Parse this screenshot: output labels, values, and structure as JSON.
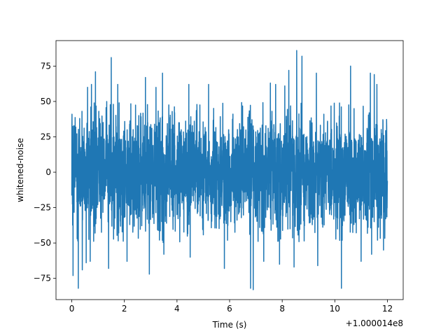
{
  "chart_data": {
    "type": "line",
    "title": "",
    "xlabel": "Time (s)",
    "ylabel": "whitened-noise",
    "x_offset_label": "+1.000014e8",
    "xlim": [
      -0.6,
      12.6
    ],
    "ylim": [
      -90,
      93
    ],
    "x_ticks": [
      0,
      2,
      4,
      6,
      8,
      10,
      12
    ],
    "x_tick_labels": [
      "0",
      "2",
      "4",
      "6",
      "8",
      "10",
      "12"
    ],
    "y_ticks": [
      -75,
      -50,
      -25,
      0,
      25,
      50,
      75
    ],
    "y_tick_labels": [
      "−75",
      "−50",
      "−25",
      "0",
      "25",
      "50",
      "75"
    ],
    "grid": false,
    "legend": "none",
    "series": [
      {
        "color": "#1f77b4",
        "x_range": [
          0,
          12
        ],
        "band": [
          -50,
          50
        ],
        "peaks": [
          {
            "x": 0.05,
            "y": 64
          },
          {
            "x": 0.25,
            "y": 61
          },
          {
            "x": 0.6,
            "y": 60
          },
          {
            "x": 0.75,
            "y": 62
          },
          {
            "x": 0.9,
            "y": 71
          },
          {
            "x": 1.5,
            "y": 81
          },
          {
            "x": 1.75,
            "y": 62
          },
          {
            "x": 2.8,
            "y": 67
          },
          {
            "x": 3.2,
            "y": 60
          },
          {
            "x": 3.45,
            "y": 70
          },
          {
            "x": 4.45,
            "y": 62
          },
          {
            "x": 5.2,
            "y": 62
          },
          {
            "x": 6.8,
            "y": 71
          },
          {
            "x": 7.3,
            "y": 60
          },
          {
            "x": 7.55,
            "y": 63
          },
          {
            "x": 7.75,
            "y": 62
          },
          {
            "x": 8.1,
            "y": 61
          },
          {
            "x": 8.25,
            "y": 72
          },
          {
            "x": 8.55,
            "y": 86
          },
          {
            "x": 8.75,
            "y": 82
          },
          {
            "x": 9.3,
            "y": 70
          },
          {
            "x": 10.25,
            "y": 66
          },
          {
            "x": 10.6,
            "y": 75
          },
          {
            "x": 11.35,
            "y": 70
          },
          {
            "x": 11.5,
            "y": 69
          },
          {
            "x": 11.6,
            "y": 62
          }
        ],
        "troughs": [
          {
            "x": 0.05,
            "y": -73
          },
          {
            "x": 0.25,
            "y": -82
          },
          {
            "x": 0.4,
            "y": -69
          },
          {
            "x": 0.55,
            "y": -64
          },
          {
            "x": 0.7,
            "y": -63
          },
          {
            "x": 1.4,
            "y": -68
          },
          {
            "x": 2.1,
            "y": -63
          },
          {
            "x": 2.95,
            "y": -72
          },
          {
            "x": 3.5,
            "y": -58
          },
          {
            "x": 4.5,
            "y": -60
          },
          {
            "x": 5.8,
            "y": -68
          },
          {
            "x": 6.8,
            "y": -82
          },
          {
            "x": 6.9,
            "y": -83
          },
          {
            "x": 7.3,
            "y": -63
          },
          {
            "x": 7.9,
            "y": -65
          },
          {
            "x": 8.45,
            "y": -67
          },
          {
            "x": 9.35,
            "y": -66
          },
          {
            "x": 10.25,
            "y": -82
          },
          {
            "x": 11.0,
            "y": -63
          },
          {
            "x": 11.4,
            "y": -58
          },
          {
            "x": 11.85,
            "y": -55
          }
        ]
      }
    ]
  }
}
